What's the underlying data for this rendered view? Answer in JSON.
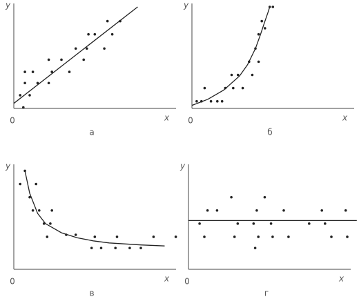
{
  "chart_data": [
    {
      "type": "scatter",
      "title": "а",
      "xlabel": "x",
      "ylabel": "y",
      "xlim": [
        0,
        10
      ],
      "ylim": [
        0,
        10
      ],
      "xticks": [
        0
      ],
      "color": "#222",
      "x": [
        0.6,
        0.4,
        0.7,
        0.7,
        1.0,
        1.2,
        1.5,
        2.2,
        2.4,
        2.2,
        3.0,
        3.5,
        3.9,
        4.4,
        4.6,
        4.7,
        5.1,
        5.7,
        5.9,
        6.2,
        6.7
      ],
      "y": [
        0.1,
        1.3,
        2.5,
        3.6,
        1.3,
        3.6,
        2.5,
        2.5,
        3.6,
        4.8,
        4.8,
        3.6,
        5.9,
        4.8,
        5.9,
        7.3,
        7.3,
        5.9,
        8.6,
        7.3,
        8.6
      ],
      "fit_x": [
        0,
        7.8
      ],
      "fit_y": [
        0.5,
        10
      ]
    },
    {
      "type": "scatter",
      "title": "б",
      "xlabel": "x",
      "ylabel": "y",
      "xlim": [
        0,
        10
      ],
      "ylim": [
        0,
        10
      ],
      "xticks": [
        0
      ],
      "color": "#222",
      "x": [
        0.3,
        0.6,
        0.8,
        1.2,
        1.6,
        1.9,
        2.1,
        2.5,
        2.6,
        2.9,
        3.2,
        3.6,
        3.8,
        4.0,
        4.2,
        4.2,
        4.4,
        4.6,
        4.9,
        5.1
      ],
      "y": [
        0.7,
        0.7,
        2.0,
        0.7,
        0.7,
        0.7,
        2.0,
        3.3,
        2.0,
        3.3,
        2.0,
        4.6,
        3.3,
        5.9,
        4.6,
        7.3,
        8.6,
        7.9,
        10,
        10
      ],
      "fit_x": [
        0,
        1,
        2,
        3,
        3.5,
        4,
        4.3,
        4.6,
        4.8,
        4.9
      ],
      "fit_y": [
        0.3,
        0.9,
        1.8,
        3.2,
        4.3,
        5.9,
        7.2,
        8.6,
        9.5,
        10
      ]
    },
    {
      "type": "scatter",
      "title": "в",
      "xlabel": "x",
      "ylabel": "y",
      "xlim": [
        0,
        10
      ],
      "ylim": [
        0,
        10
      ],
      "xticks": [
        0
      ],
      "color": "#222",
      "x": [
        0.4,
        0.7,
        1.0,
        1.4,
        1.2,
        1.6,
        1.9,
        2.4,
        2.1,
        2.3,
        3.3,
        3.9,
        4.9,
        5.1,
        5.5,
        6.4,
        6.5,
        7.3,
        8.0,
        8.8,
        10.2
      ],
      "y": [
        8.4,
        9.7,
        7.1,
        8.4,
        5.8,
        5.8,
        4.5,
        5.8,
        3.2,
        4.5,
        3.4,
        3.4,
        2.1,
        3.2,
        2.1,
        2.1,
        3.2,
        2.1,
        2.1,
        3.2,
        3.2
      ],
      "fit_x": [
        0.7,
        1,
        1.5,
        2,
        3,
        4,
        5,
        6,
        8,
        9.5
      ],
      "fit_y": [
        9.7,
        7.5,
        5.5,
        4.5,
        3.6,
        3.1,
        2.8,
        2.6,
        2.4,
        2.3
      ]
    },
    {
      "type": "scatter",
      "title": "г",
      "xlabel": "x",
      "ylabel": "y",
      "xlim": [
        0,
        10
      ],
      "ylim": [
        0,
        10
      ],
      "xticks": [
        0
      ],
      "color": "#222",
      "x": [
        0.7,
        1.2,
        1.8,
        1.0,
        2.7,
        2.9,
        3.1,
        4.1,
        4.2,
        4.3,
        4.8,
        4.4,
        5.2,
        5.3,
        6.0,
        6.3,
        7.6,
        8.4,
        8.6,
        9.0,
        9.9,
        10.0
      ],
      "y": [
        4.5,
        5.8,
        5.8,
        3.2,
        7.1,
        3.2,
        4.5,
        4.5,
        2.1,
        5.8,
        7.1,
        3.2,
        4.5,
        3.2,
        5.8,
        3.2,
        4.5,
        5.8,
        4.5,
        3.2,
        5.8,
        3.2
      ],
      "fit_x": [
        0,
        10.6
      ],
      "fit_y": [
        4.8,
        4.8
      ]
    }
  ]
}
